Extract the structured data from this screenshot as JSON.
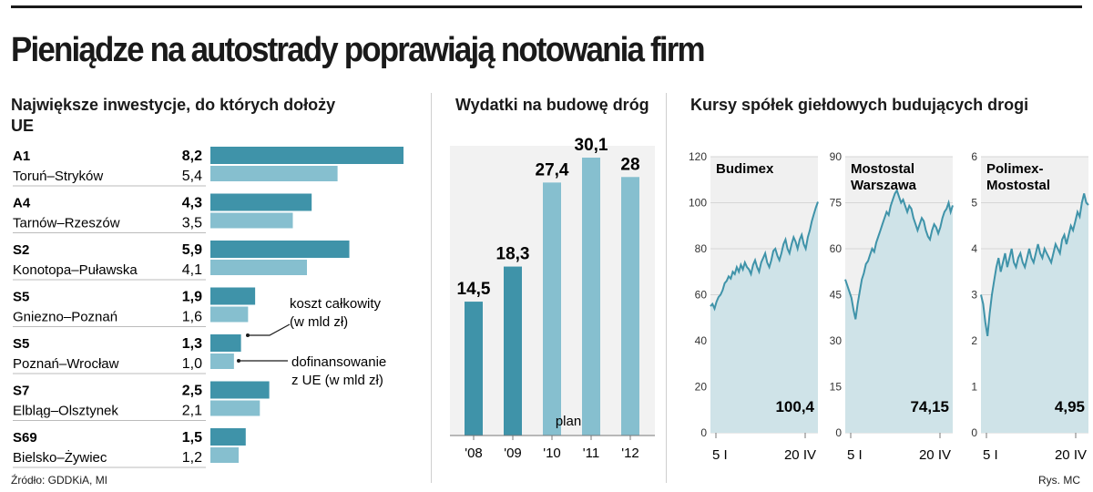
{
  "title": "Pieniądze na autostrady poprawiają notowania firm",
  "investments": {
    "heading": "Największe inwestycje, do których dołoży UE",
    "legend_total": "koszt całkowity (w mld zł)",
    "legend_ue": "dofinansowanie z UE (w mld zł)",
    "source": "Źródło: GDDKiA, MI"
  },
  "spending": {
    "heading": "Wydatki na budowę dróg",
    "plan_label": "plan"
  },
  "stocks": {
    "heading": "Kursy spółek giełdowych budujących drogi",
    "credit": "Rys. MC"
  },
  "chart_data": [
    {
      "type": "bar",
      "orientation": "horizontal",
      "title": "Największe inwestycje, do których dołoży UE",
      "categories": [
        {
          "road": "A1",
          "section": "Toruń–Stryków"
        },
        {
          "road": "A4",
          "section": "Tarnów–Rzeszów"
        },
        {
          "road": "S2",
          "section": "Konotopa–Puławska"
        },
        {
          "road": "S5",
          "section": "Gniezno–Poznań"
        },
        {
          "road": "S5",
          "section": "Poznań–Wrocław"
        },
        {
          "road": "S7",
          "section": "Elbląg–Olsztynek"
        },
        {
          "road": "S69",
          "section": "Bielsko–Żywiec"
        }
      ],
      "series": [
        {
          "name": "koszt całkowity (w mld zł)",
          "values": [
            8.2,
            4.3,
            5.9,
            1.9,
            1.3,
            2.5,
            1.5
          ],
          "labels": [
            "8,2",
            "4,3",
            "5,9",
            "1,9",
            "1,3",
            "2,5",
            "1,5"
          ]
        },
        {
          "name": "dofinansowanie z UE (w mld zł)",
          "values": [
            5.4,
            3.5,
            4.1,
            1.6,
            1.0,
            2.1,
            1.2
          ],
          "labels": [
            "5,4",
            "3,5",
            "4,1",
            "1,6",
            "1,0",
            "2,1",
            "1,2"
          ]
        }
      ],
      "xlim": [
        0,
        8.2
      ]
    },
    {
      "type": "bar",
      "title": "Wydatki na budowę dróg",
      "categories": [
        "'08",
        "'09",
        "'10",
        "'11",
        "'12"
      ],
      "values": [
        14.5,
        18.3,
        27.4,
        30.1,
        28
      ],
      "labels": [
        "14,5",
        "18,3",
        "27,4",
        "30,1",
        "28"
      ],
      "plan_from_index": 2,
      "annotation": "plan",
      "ylim": [
        0,
        30.1
      ]
    },
    {
      "type": "line",
      "title": "Kursy spółek giełdowych budujących drogi",
      "panels": [
        {
          "name": "Budimex",
          "last_value": "100,4",
          "ylim": [
            0,
            120
          ],
          "yticks": [
            "120",
            "100",
            "80",
            "60",
            "40",
            "20",
            "0"
          ],
          "xticks": [
            "5 I",
            "20 IV"
          ],
          "values": [
            55,
            56,
            54,
            57,
            59,
            60,
            62,
            65,
            66,
            68,
            67,
            70,
            69,
            72,
            70,
            73,
            71,
            74,
            72,
            71,
            69,
            73,
            75,
            72,
            70,
            74,
            76,
            78,
            74,
            72,
            75,
            79,
            80,
            77,
            75,
            78,
            82,
            84,
            80,
            78,
            82,
            85,
            83,
            80,
            84,
            86,
            82,
            80,
            85,
            88,
            92,
            95,
            98,
            100.4
          ]
        },
        {
          "name": "Mostostal Warszawa",
          "last_value": "74,15",
          "ylim": [
            0,
            90
          ],
          "yticks": [
            "90",
            "75",
            "60",
            "45",
            "30",
            "15",
            "0"
          ],
          "xticks": [
            "5 I",
            "20 IV"
          ],
          "values": [
            50,
            48,
            46,
            44,
            40,
            37,
            42,
            46,
            50,
            52,
            55,
            56,
            58,
            60,
            59,
            62,
            64,
            66,
            68,
            70,
            72,
            71,
            74,
            76,
            78,
            79,
            77,
            75,
            76,
            74,
            72,
            74,
            73,
            70,
            68,
            66,
            68,
            70,
            69,
            66,
            64,
            63,
            66,
            68,
            67,
            65,
            67,
            70,
            72,
            73,
            75,
            72,
            74.15
          ]
        },
        {
          "name": "Polimex-Mostostal",
          "last_value": "4,95",
          "ylim": [
            0,
            6
          ],
          "yticks": [
            "6",
            "5",
            "4",
            "3",
            "2",
            "1",
            "0"
          ],
          "xticks": [
            "5 I",
            "20 IV"
          ],
          "values": [
            3.0,
            2.8,
            2.4,
            2.1,
            2.6,
            3.0,
            3.3,
            3.6,
            3.8,
            3.5,
            3.7,
            3.9,
            3.6,
            3.8,
            4.0,
            3.7,
            3.6,
            3.8,
            3.9,
            3.7,
            3.6,
            3.8,
            4.0,
            3.8,
            3.7,
            3.9,
            4.1,
            3.9,
            3.8,
            4.0,
            3.9,
            3.8,
            3.7,
            3.9,
            4.1,
            4.0,
            3.9,
            4.2,
            4.3,
            4.1,
            4.3,
            4.5,
            4.4,
            4.6,
            4.8,
            4.7,
            5.0,
            5.2,
            5.0,
            4.95
          ]
        }
      ]
    }
  ]
}
